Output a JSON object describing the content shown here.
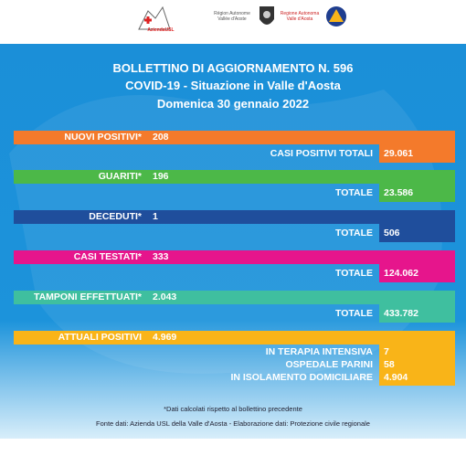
{
  "header": {
    "logos": [
      "AziendaUSL",
      "Région Autonome Vallée d'Aoste",
      "Regione Autonoma Valle d'Aosta"
    ]
  },
  "title": {
    "lines": [
      "BOLLETTINO DI AGGIORNAMENTO N. 596",
      "COVID-19 - Situazione in Valle d'Aosta",
      "Domenica 30 gennaio 2022"
    ]
  },
  "rows": [
    {
      "label": "NUOVI POSITIVI*",
      "value": "208",
      "total_label": "CASI POSITIVI TOTALI",
      "total": "29.061",
      "color": "#f47a2b"
    },
    {
      "label": "GUARITI*",
      "value": "196",
      "total_label": "TOTALE",
      "total": "23.586",
      "color": "#4cb848"
    },
    {
      "label": "DECEDUTI*",
      "value": "1",
      "total_label": "TOTALE",
      "total": "506",
      "color": "#1f4e9c"
    },
    {
      "label": "CASI TESTATI*",
      "value": "333",
      "total_label": "TOTALE",
      "total": "124.062",
      "color": "#e6158c"
    },
    {
      "label": "TAMPONI EFFETTUATI*",
      "value": "2.043",
      "total_label": "TOTALE",
      "total": "433.782",
      "color": "#3fbf9f"
    }
  ],
  "attuali": {
    "label": "ATTUALI POSITIVI",
    "value": "4.969",
    "color": "#f9b418",
    "details": [
      {
        "label": "IN TERAPIA INTENSIVA",
        "value": "7"
      },
      {
        "label": "OSPEDALE PARINI",
        "value": "58"
      },
      {
        "label": "IN ISOLAMENTO DOMICILIARE",
        "value": "4.904"
      }
    ]
  },
  "footer": {
    "note": "*Dati calcolati rispetto al bollettino precedente",
    "source": "Fonte dati: Azienda USL della Valle d'Aosta - Elaborazione dati: Protezione civile regionale"
  }
}
